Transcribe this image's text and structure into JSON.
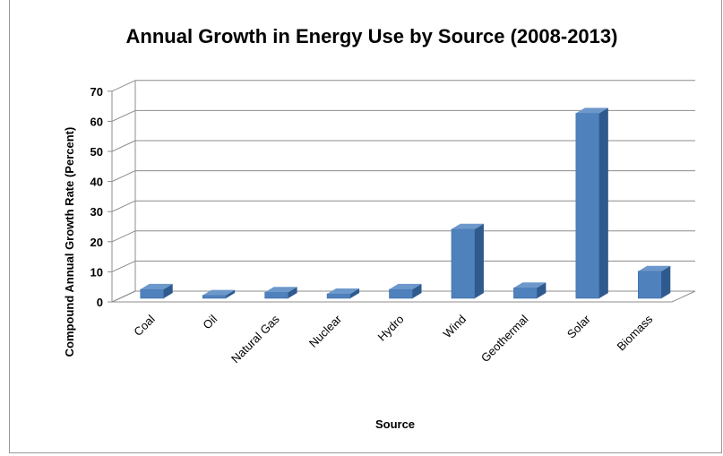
{
  "chart_data": {
    "type": "bar",
    "title": "Annual Growth in Energy Use by Source (2008-2013)",
    "xlabel": "Source",
    "ylabel": "Compound Annual Growth Rate  (Percent)",
    "categories": [
      "Coal",
      "Oil",
      "Natural Gas",
      "Nuclear",
      "Hydro",
      "Wind",
      "Geothermal",
      "Solar",
      "Biomass"
    ],
    "values": [
      3,
      1,
      2,
      1.5,
      3,
      23,
      3.5,
      61.5,
      9
    ],
    "ylim": [
      0,
      70
    ],
    "yticks": [
      "0",
      "10",
      "20",
      "30",
      "40",
      "50",
      "60",
      "70"
    ],
    "grid": true,
    "style": "3d-column",
    "colors": {
      "bar_front": "#4f81bd",
      "bar_side": "#2e5a8e",
      "bar_top": "#6d98cc",
      "grid": "#8c8c8c"
    }
  }
}
